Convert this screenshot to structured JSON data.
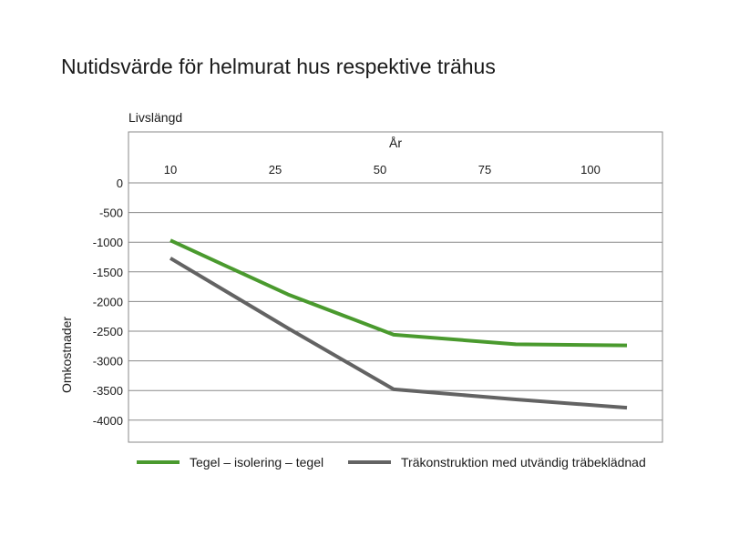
{
  "chart_data": {
    "type": "line",
    "title": "Nutidsvärde för helmurat hus respektive trähus",
    "corner_label": "Livslängd",
    "xlabel": "År",
    "ylabel": "Omkostnader",
    "x_ticks": [
      "10",
      "25",
      "50",
      "75",
      "100"
    ],
    "y_ticks": [
      0,
      -500,
      -1000,
      -1500,
      -2000,
      -2500,
      -3000,
      -3500,
      -4000
    ],
    "ylim": [
      -4400,
      0
    ],
    "grid": true,
    "legend_position": "bottom",
    "series": [
      {
        "name": "Tegel – isolering – tegel",
        "color": "#4a9a2e",
        "points": [
          [
            10,
            -970
          ],
          [
            25,
            -1880
          ],
          [
            50,
            -2560
          ],
          [
            75,
            -2720
          ],
          [
            100,
            -2740
          ]
        ]
      },
      {
        "name": "Träkonstruktion med utvändig träbeklädnad",
        "color": "#636363",
        "points": [
          [
            10,
            -1270
          ],
          [
            25,
            -2450
          ],
          [
            50,
            -3480
          ],
          [
            75,
            -3650
          ],
          [
            100,
            -3790
          ]
        ]
      }
    ]
  }
}
